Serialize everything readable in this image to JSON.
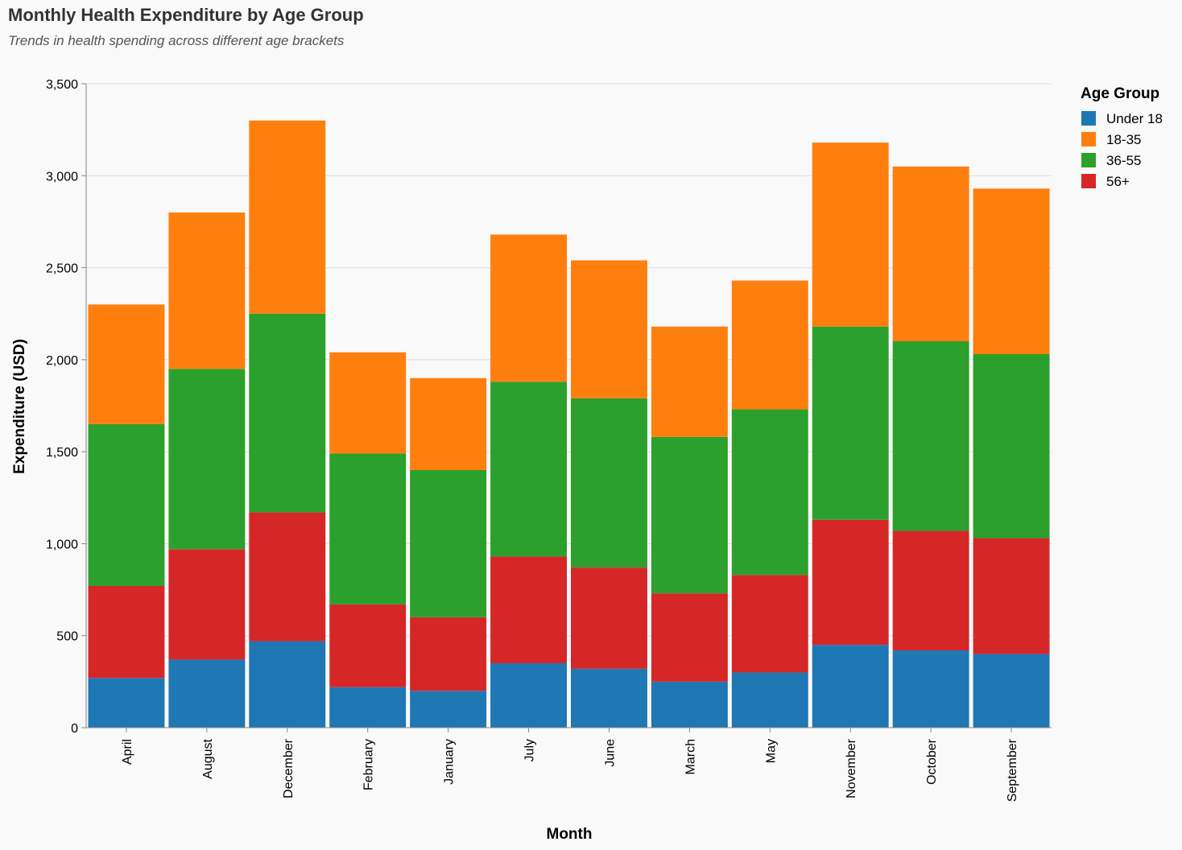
{
  "chart_data": {
    "type": "bar",
    "stacked": true,
    "title": "Monthly Health Expenditure by Age Group",
    "subtitle": "Trends in health spending across different age brackets",
    "xlabel": "Month",
    "ylabel": "Expenditure (USD)",
    "ylim": [
      0,
      3500
    ],
    "yticks": [
      0,
      500,
      1000,
      1500,
      2000,
      2500,
      3000,
      3500
    ],
    "ytick_labels": [
      "0",
      "500",
      "1,000",
      "1,500",
      "2,000",
      "2,500",
      "3,000",
      "3,500"
    ],
    "grid": true,
    "legend_title": "Age Group",
    "legend_position": "top-right",
    "categories": [
      "April",
      "August",
      "December",
      "February",
      "January",
      "July",
      "June",
      "March",
      "May",
      "November",
      "October",
      "September"
    ],
    "stack_order": [
      "Under 18",
      "56+",
      "36-55",
      "18-35"
    ],
    "series": [
      {
        "name": "Under 18",
        "color": "#1f77b4",
        "values": [
          270,
          370,
          470,
          220,
          200,
          350,
          320,
          250,
          300,
          450,
          420,
          400
        ]
      },
      {
        "name": "18-35",
        "color": "#ff7f0e",
        "values": [
          650,
          850,
          1050,
          550,
          500,
          800,
          750,
          600,
          700,
          1000,
          950,
          900
        ]
      },
      {
        "name": "36-55",
        "color": "#2ca02c",
        "values": [
          880,
          980,
          1080,
          820,
          800,
          950,
          920,
          850,
          900,
          1050,
          1030,
          1000
        ]
      },
      {
        "name": "56+",
        "color": "#d62728",
        "values": [
          500,
          600,
          700,
          450,
          400,
          580,
          550,
          480,
          530,
          680,
          650,
          630
        ]
      }
    ]
  }
}
